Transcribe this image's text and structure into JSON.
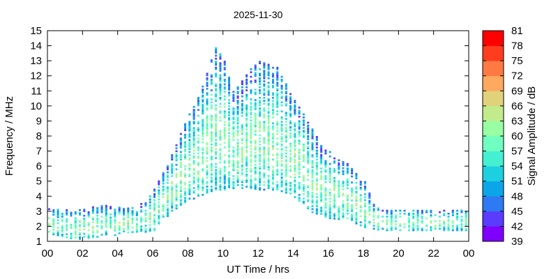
{
  "chart_data": {
    "type": "heatmap",
    "title": "2025-11-30",
    "xlabel": "UT Time / hrs",
    "ylabel": "Frequency / MHz",
    "colorbar_label": "Signal Amplitude / dB",
    "xlim": [
      0,
      24
    ],
    "ylim": [
      1,
      15
    ],
    "xticks": [
      "00",
      "02",
      "04",
      "06",
      "08",
      "10",
      "12",
      "14",
      "16",
      "18",
      "20",
      "22",
      "00"
    ],
    "yticks": [
      "1",
      "2",
      "3",
      "4",
      "5",
      "6",
      "7",
      "8",
      "9",
      "10",
      "11",
      "12",
      "13",
      "14",
      "15"
    ],
    "clim": [
      39,
      81
    ],
    "colorbar_ticks": [
      "39",
      "42",
      "45",
      "48",
      "51",
      "54",
      "57",
      "60",
      "63",
      "66",
      "69",
      "72",
      "75",
      "78",
      "81"
    ],
    "colors": [
      "#7f00ff",
      "#5a3cff",
      "#2d7af2",
      "#0aa6e9",
      "#1cd0e0",
      "#45f0d2",
      "#70ffc0",
      "#98ffa2",
      "#c2ec8c",
      "#e0d27a",
      "#ffa860",
      "#ff7a42",
      "#ff3c1e",
      "#ff0000"
    ],
    "grid": false,
    "time_step_hours": 0.25,
    "frequency_step_mhz": 0.1,
    "envelope": [
      {
        "t": 0,
        "fmin": 1.6,
        "fmax": 3.3
      },
      {
        "t": 1.5,
        "fmin": 1.2,
        "fmax": 3.1
      },
      {
        "t": 3,
        "fmin": 1.4,
        "fmax": 3.5
      },
      {
        "t": 5,
        "fmin": 1.6,
        "fmax": 3.3
      },
      {
        "t": 6,
        "fmin": 1.8,
        "fmax": 4.5
      },
      {
        "t": 6.5,
        "fmin": 2.5,
        "fmax": 5.8
      },
      {
        "t": 7,
        "fmin": 3,
        "fmax": 6.8
      },
      {
        "t": 7.5,
        "fmin": 3.5,
        "fmax": 8.2
      },
      {
        "t": 8,
        "fmin": 3.8,
        "fmax": 9.6
      },
      {
        "t": 8.5,
        "fmin": 4,
        "fmax": 10.6
      },
      {
        "t": 9,
        "fmin": 4.3,
        "fmax": 12.2
      },
      {
        "t": 9.5,
        "fmin": 4.5,
        "fmax": 14
      },
      {
        "t": 10,
        "fmin": 4.5,
        "fmax": 13
      },
      {
        "t": 10.5,
        "fmin": 4.6,
        "fmax": 11
      },
      {
        "t": 11,
        "fmin": 4.6,
        "fmax": 11.8
      },
      {
        "t": 11.5,
        "fmin": 4.6,
        "fmax": 12.5
      },
      {
        "t": 12,
        "fmin": 4.5,
        "fmax": 13
      },
      {
        "t": 13,
        "fmin": 4.5,
        "fmax": 12.6
      },
      {
        "t": 13.5,
        "fmin": 4.3,
        "fmax": 11.5
      },
      {
        "t": 14,
        "fmin": 4,
        "fmax": 10.5
      },
      {
        "t": 14.5,
        "fmin": 3.5,
        "fmax": 9.5
      },
      {
        "t": 15,
        "fmin": 3,
        "fmax": 8.5
      },
      {
        "t": 15.5,
        "fmin": 2.8,
        "fmax": 7.5
      },
      {
        "t": 16,
        "fmin": 2.6,
        "fmax": 7
      },
      {
        "t": 17,
        "fmin": 2.5,
        "fmax": 6.2
      },
      {
        "t": 18,
        "fmin": 2,
        "fmax": 5
      },
      {
        "t": 18.5,
        "fmin": 1.9,
        "fmax": 3.6
      },
      {
        "t": 19,
        "fmin": 1.8,
        "fmax": 3.2
      },
      {
        "t": 24,
        "fmin": 1.8,
        "fmax": 3.2
      }
    ]
  }
}
